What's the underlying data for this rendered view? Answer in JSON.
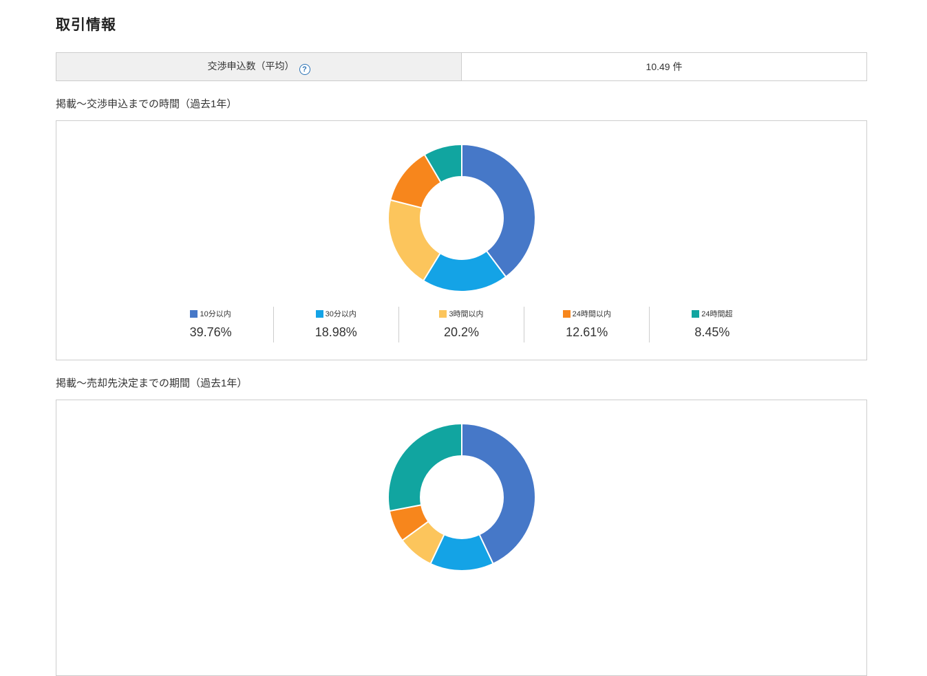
{
  "page": {
    "title": "取引情報"
  },
  "summary_table": {
    "rows": [
      {
        "label": "交渉申込数（平均）",
        "help_glyph": "?",
        "value": "10.49 件"
      }
    ]
  },
  "sections": [
    {
      "heading": "掲載〜交渉申込までの時間（過去1年）"
    },
    {
      "heading": "掲載〜売却先決定までの期間（過去1年）"
    }
  ],
  "colors": {
    "help_icon_blue": "#2a72b5",
    "border_gray": "#cccccc",
    "label_cell_bg": "#f0f0f0"
  },
  "chart_data": [
    {
      "type": "pie",
      "subtype": "donut",
      "title": "掲載〜交渉申込までの時間（過去1年）",
      "categories": [
        "10分以内",
        "30分以内",
        "3時間以内",
        "24時間以内",
        "24時間超"
      ],
      "values": [
        39.76,
        18.98,
        20.2,
        12.61,
        8.45
      ],
      "value_labels": [
        "39.76%",
        "18.98%",
        "20.2%",
        "12.61%",
        "8.45%"
      ],
      "colors": [
        "#4678c8",
        "#14a3e6",
        "#fcc55c",
        "#f7861c",
        "#11a5a0"
      ],
      "legend_position": "bottom",
      "start_angle_deg": 0,
      "direction": "clockwise"
    },
    {
      "type": "pie",
      "subtype": "donut",
      "title": "掲載〜売却先決定までの期間（過去1年）",
      "values": [
        43,
        14,
        8,
        7,
        28
      ],
      "colors": [
        "#4678c8",
        "#14a3e6",
        "#fcc55c",
        "#f7861c",
        "#11a5a0"
      ],
      "legend_position": "bottom",
      "start_angle_deg": 0,
      "direction": "clockwise",
      "note": "chart cut off at bottom edge of screenshot; segment values estimated from visible arcs, legend labels not visible"
    }
  ]
}
